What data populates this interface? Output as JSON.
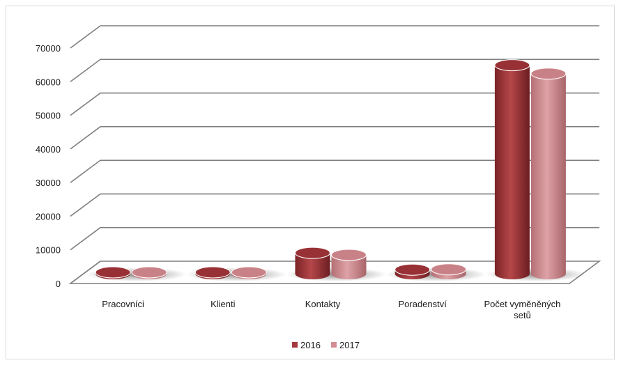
{
  "chart_data": {
    "type": "bar",
    "title": "",
    "xlabel": "",
    "ylabel": "",
    "ylim": [
      0,
      70000
    ],
    "y_ticks": [
      "0",
      "10000",
      "20000",
      "30000",
      "40000",
      "50000",
      "60000",
      "70000"
    ],
    "categories": [
      "Pracovníci",
      "Klienti",
      "Kontakty",
      "Poradenství",
      "Počet vyměněných setů"
    ],
    "series": [
      {
        "name": "2016",
        "color": "#a33a3d",
        "values": [
          80,
          350,
          6200,
          1200,
          62000
        ]
      },
      {
        "name": "2017",
        "color": "#d38d92",
        "values": [
          70,
          330,
          5600,
          1300,
          59500
        ]
      }
    ],
    "grid": true,
    "style": "3d-cylinder",
    "legend_position": "bottom"
  }
}
